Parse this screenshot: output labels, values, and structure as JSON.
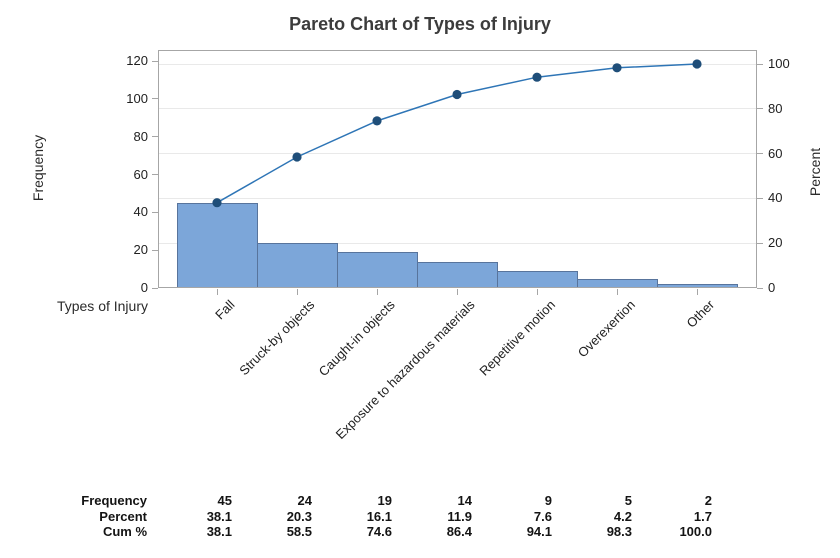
{
  "chart_data": {
    "type": "bar",
    "subtype": "pareto",
    "title": "Pareto Chart of Types of Injury",
    "categories": [
      "Fall",
      "Struck-by objects",
      "Caught-in objects",
      "Exposure to hazardous materials",
      "Repetitive motion",
      "Overexertion",
      "Other"
    ],
    "series": [
      {
        "name": "Frequency",
        "type": "bar",
        "axis": "left",
        "values": [
          45,
          24,
          19,
          14,
          9,
          5,
          2
        ]
      },
      {
        "name": "Cum %",
        "type": "line",
        "axis": "right",
        "values": [
          38.1,
          58.5,
          74.6,
          86.4,
          94.1,
          98.3,
          100.0
        ]
      }
    ],
    "xlabel": "Types of Injury",
    "ylabel_left": "Frequency",
    "ylabel_right": "Percent",
    "yticks_left": [
      0,
      20,
      40,
      60,
      80,
      100,
      120
    ],
    "yticks_right": [
      0,
      20,
      40,
      60,
      80,
      100
    ],
    "ylim_left": [
      0,
      120
    ],
    "ylim_right": [
      0,
      100
    ],
    "grid": "horizontal gridlines at right-axis (percent) ticks",
    "legend": "none"
  },
  "summary_table": {
    "rows": [
      {
        "label": "Frequency",
        "values": [
          "45",
          "24",
          "19",
          "14",
          "9",
          "5",
          "2"
        ]
      },
      {
        "label": "Percent",
        "values": [
          "38.1",
          "20.3",
          "16.1",
          "11.9",
          "7.6",
          "4.2",
          "1.7"
        ]
      },
      {
        "label": "Cum %",
        "values": [
          "38.1",
          "58.5",
          "74.6",
          "86.4",
          "94.1",
          "98.3",
          "100.0"
        ]
      }
    ]
  },
  "colors": {
    "bar_fill": "#7CA6D9",
    "bar_border": "#58749C",
    "line": "#2E75B6",
    "marker": "#1F4E79",
    "axis": "#A6A6A6",
    "gridline": "#E9E9E9",
    "text": "#1F1F1F",
    "title": "#3C3C3C"
  }
}
